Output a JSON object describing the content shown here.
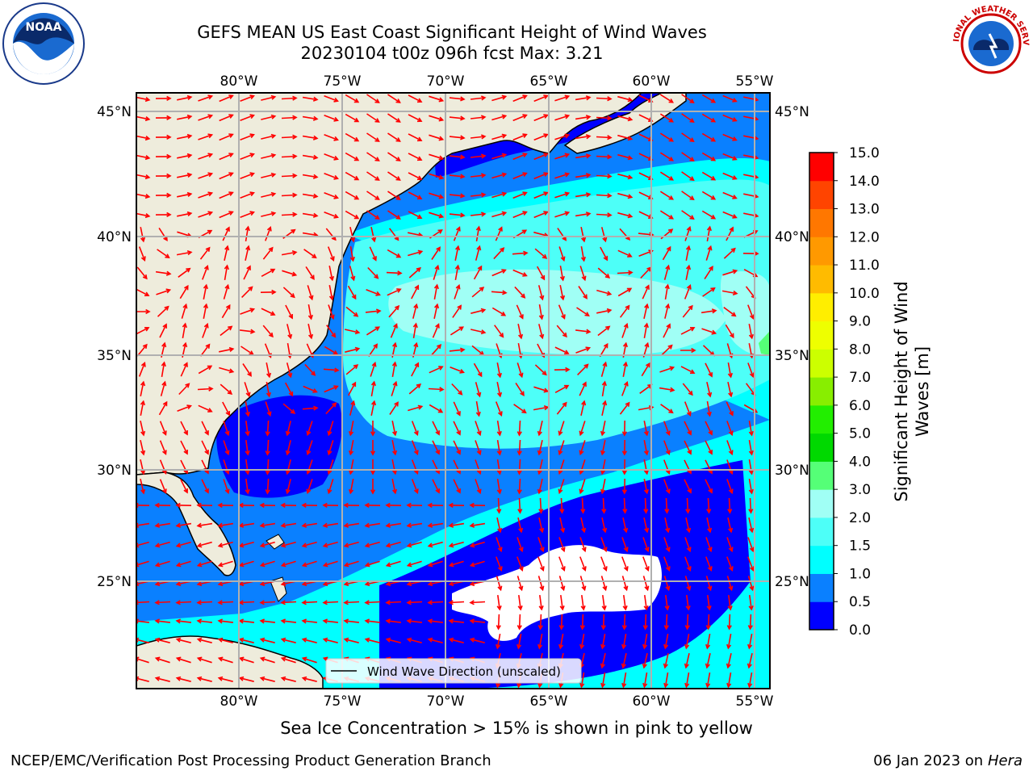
{
  "header": {
    "title_line1": "GEFS MEAN US East Coast Significant Height of Wind Waves",
    "title_line2": "20230104 t00z 096h fcst   Max: 3.21"
  },
  "logos": {
    "left": "NOAA",
    "right": "NATIONAL WEATHER SERVICE"
  },
  "map": {
    "lon_labels": [
      "80°W",
      "75°W",
      "70°W",
      "65°W",
      "60°W",
      "55°W"
    ],
    "lat_labels": [
      "45°N",
      "40°N",
      "35°N",
      "30°N",
      "25°N"
    ],
    "legend_label": "Wind Wave Direction (unscaled)",
    "arrow_color": "#ff0000",
    "land_color": "#eeecdc"
  },
  "colorbar": {
    "label_line1": "Significant Height of Wind",
    "label_line2": "Waves [m]",
    "ticks": [
      "0.0",
      "0.5",
      "1.0",
      "1.5",
      "2.0",
      "3.0",
      "4.0",
      "5.0",
      "6.0",
      "7.0",
      "8.0",
      "9.0",
      "10.0",
      "11.0",
      "12.0",
      "13.0",
      "14.0",
      "15.0"
    ],
    "colors": [
      "#0000ff",
      "#0a80ff",
      "#00ffff",
      "#4dfff8",
      "#a0fff5",
      "#55ff77",
      "#00d900",
      "#22ee00",
      "#88ee00",
      "#ccff00",
      "#eeff00",
      "#ffee00",
      "#ffbb00",
      "#ff9900",
      "#ff7700",
      "#ff4400",
      "#ff0000"
    ]
  },
  "notes": {
    "ice": "Sea Ice Concentration > 15% is shown in pink to yellow",
    "footer_left": "NCEP/EMC/Verification Post Processing Product Generation Branch",
    "footer_right_prefix": "06 Jan 2023 on ",
    "footer_right_host": "Hera"
  }
}
